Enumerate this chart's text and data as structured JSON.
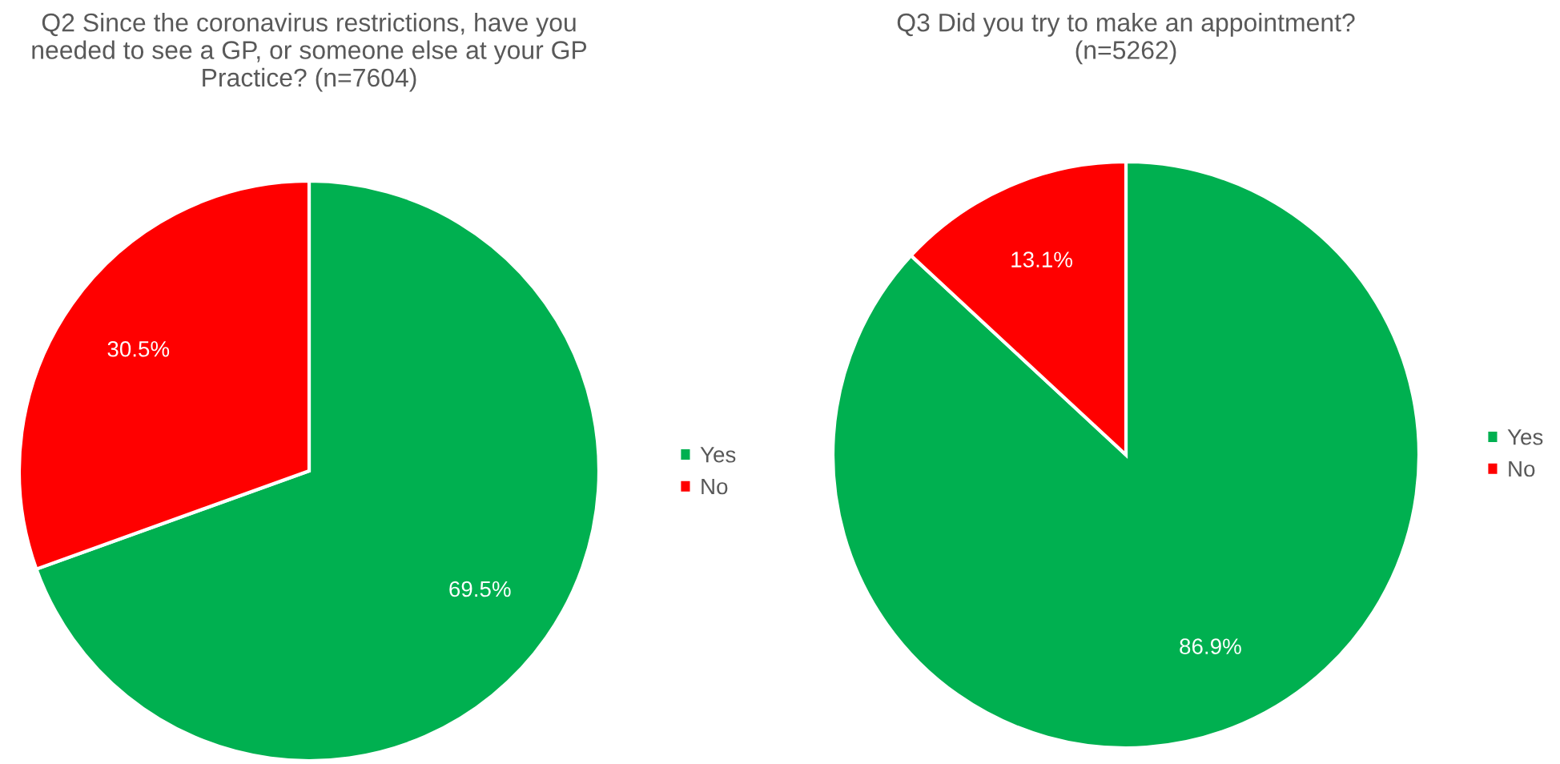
{
  "chart_data": [
    {
      "type": "pie",
      "title": "Q2 Since the coronavirus restrictions, have you needed to see a GP, or someone else at your GP Practice? (n=7604)",
      "categories": [
        "Yes",
        "No"
      ],
      "values": [
        69.5,
        30.5
      ],
      "colors": [
        "#00b050",
        "#ff0000"
      ],
      "value_labels": [
        "69.5%",
        "30.5%"
      ],
      "legend": "right"
    },
    {
      "type": "pie",
      "title": "Q3 Did you try to make an appointment?\n(n=5262)",
      "categories": [
        "Yes",
        "No"
      ],
      "values": [
        86.9,
        13.1
      ],
      "colors": [
        "#00b050",
        "#ff0000"
      ],
      "value_labels": [
        "86.9%",
        "13.1%"
      ],
      "legend": "right"
    }
  ]
}
